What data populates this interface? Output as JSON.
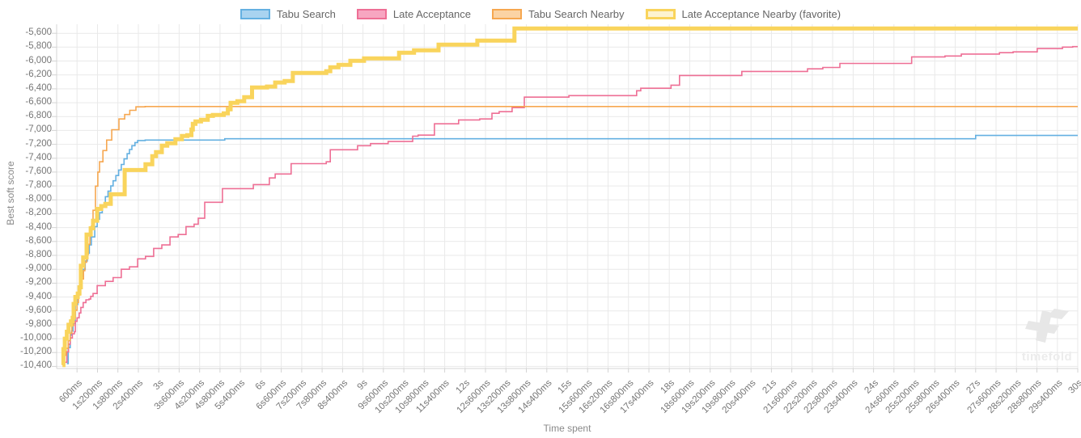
{
  "watermark": {
    "text": "timefold"
  },
  "chart_data": {
    "type": "line",
    "subtype": "step",
    "title": "",
    "xlabel": "Time spent",
    "ylabel": "Best soft score",
    "grid": true,
    "legend_position": "top",
    "xlim_seconds": [
      0,
      30
    ],
    "ylim": [
      -10430,
      -5470
    ],
    "x_tick_interval_seconds": 0.6,
    "x_ticks": [
      "600ms",
      "1s200ms",
      "1s800ms",
      "2s400ms",
      "3s",
      "3s600ms",
      "4s200ms",
      "4s800ms",
      "5s400ms",
      "6s",
      "6s600ms",
      "7s200ms",
      "7s800ms",
      "8s400ms",
      "9s",
      "9s600ms",
      "10s200ms",
      "10s800ms",
      "11s400ms",
      "12s",
      "12s600ms",
      "13s200ms",
      "13s800ms",
      "14s400ms",
      "15s",
      "15s600ms",
      "16s200ms",
      "16s800ms",
      "17s400ms",
      "18s",
      "18s600ms",
      "19s200ms",
      "19s800ms",
      "20s400ms",
      "21s",
      "21s600ms",
      "22s200ms",
      "22s800ms",
      "23s400ms",
      "24s",
      "24s600ms",
      "25s200ms",
      "25s800ms",
      "26s400ms",
      "27s",
      "27s600ms",
      "28s200ms",
      "28s800ms",
      "29s400ms",
      "30s"
    ],
    "y_ticks": [
      "-5,600",
      "-5,800",
      "-6,000",
      "-6,200",
      "-6,400",
      "-6,600",
      "-6,800",
      "-7,000",
      "-7,200",
      "-7,400",
      "-7,600",
      "-7,800",
      "-8,000",
      "-8,200",
      "-8,400",
      "-8,600",
      "-8,800",
      "-9,000",
      "-9,200",
      "-9,400",
      "-9,600",
      "-9,800",
      "-10,000",
      "-10,200",
      "-10,400"
    ],
    "y_tick_start": -5600,
    "y_tick_step": -200,
    "grid_color": "#e9e9e9",
    "axis_color": "#d4d4d4",
    "series": [
      {
        "name": "Tabu Search",
        "line_color": "#64b0e1",
        "legend_fill": "#a9d3f0",
        "line_width": 1.6,
        "final_score": -7072,
        "points": [
          [
            0.3,
            -10360
          ],
          [
            0.34,
            -10130
          ],
          [
            0.4,
            -9950
          ],
          [
            0.44,
            -9890
          ],
          [
            0.48,
            -9780
          ],
          [
            0.55,
            -9510
          ],
          [
            0.62,
            -9370
          ],
          [
            0.67,
            -9235
          ],
          [
            0.73,
            -9100
          ],
          [
            0.78,
            -9000
          ],
          [
            0.84,
            -8880
          ],
          [
            0.9,
            -8770
          ],
          [
            0.96,
            -8650
          ],
          [
            1.02,
            -8535
          ],
          [
            1.12,
            -8385
          ],
          [
            1.19,
            -8280
          ],
          [
            1.26,
            -8185
          ],
          [
            1.34,
            -8070
          ],
          [
            1.43,
            -7955
          ],
          [
            1.51,
            -7875
          ],
          [
            1.59,
            -7800
          ],
          [
            1.66,
            -7725
          ],
          [
            1.74,
            -7650
          ],
          [
            1.82,
            -7570
          ],
          [
            1.9,
            -7490
          ],
          [
            1.98,
            -7410
          ],
          [
            2.07,
            -7335
          ],
          [
            2.14,
            -7275
          ],
          [
            2.21,
            -7220
          ],
          [
            2.3,
            -7175
          ],
          [
            2.38,
            -7145
          ],
          [
            2.6,
            -7138
          ],
          [
            4.94,
            -7120
          ],
          [
            27.0,
            -7072
          ]
        ]
      },
      {
        "name": "Late Acceptance",
        "line_color": "#ee6f95",
        "legend_fill": "#f7a6c1",
        "line_width": 1.6,
        "final_score": -5793,
        "points": [
          [
            0.26,
            -10340
          ],
          [
            0.3,
            -10190
          ],
          [
            0.35,
            -10080
          ],
          [
            0.4,
            -9990
          ],
          [
            0.46,
            -9930
          ],
          [
            0.52,
            -9900
          ],
          [
            0.55,
            -9750
          ],
          [
            0.6,
            -9700
          ],
          [
            0.66,
            -9630
          ],
          [
            0.71,
            -9550
          ],
          [
            0.78,
            -9480
          ],
          [
            0.86,
            -9440
          ],
          [
            0.95,
            -9430
          ],
          [
            1.0,
            -9390
          ],
          [
            1.07,
            -9350
          ],
          [
            1.19,
            -9235
          ],
          [
            1.43,
            -9175
          ],
          [
            1.66,
            -9120
          ],
          [
            1.9,
            -9000
          ],
          [
            2.14,
            -8965
          ],
          [
            2.38,
            -8850
          ],
          [
            2.61,
            -8815
          ],
          [
            2.85,
            -8700
          ],
          [
            3.09,
            -8650
          ],
          [
            3.33,
            -8535
          ],
          [
            3.57,
            -8500
          ],
          [
            3.8,
            -8385
          ],
          [
            4.04,
            -8350
          ],
          [
            4.16,
            -8265
          ],
          [
            4.35,
            -8035
          ],
          [
            4.87,
            -7838
          ],
          [
            5.78,
            -7780
          ],
          [
            6.25,
            -7685
          ],
          [
            6.42,
            -7628
          ],
          [
            6.89,
            -7478
          ],
          [
            7.92,
            -7452
          ],
          [
            8.04,
            -7278
          ],
          [
            8.84,
            -7220
          ],
          [
            9.22,
            -7190
          ],
          [
            9.74,
            -7160
          ],
          [
            10.46,
            -7082
          ],
          [
            10.62,
            -7068
          ],
          [
            11.1,
            -6905
          ],
          [
            11.81,
            -6848
          ],
          [
            12.43,
            -6835
          ],
          [
            12.79,
            -6753
          ],
          [
            13.0,
            -6730
          ],
          [
            13.38,
            -6672
          ],
          [
            13.74,
            -6520
          ],
          [
            15.05,
            -6498
          ],
          [
            17.04,
            -6428
          ],
          [
            17.16,
            -6392
          ],
          [
            18.05,
            -6348
          ],
          [
            18.3,
            -6208
          ],
          [
            20.13,
            -6150
          ],
          [
            22.06,
            -6113
          ],
          [
            22.51,
            -6093
          ],
          [
            23.01,
            -6035
          ],
          [
            25.12,
            -5940
          ],
          [
            26.1,
            -5928
          ],
          [
            26.58,
            -5900
          ],
          [
            27.7,
            -5880
          ],
          [
            28.1,
            -5868
          ],
          [
            28.81,
            -5820
          ],
          [
            29.55,
            -5800
          ],
          [
            29.85,
            -5793
          ]
        ]
      },
      {
        "name": "Tabu Search Nearby",
        "line_color": "#f6a750",
        "legend_fill": "#fbd3a4",
        "line_width": 1.6,
        "final_score": -6655,
        "points": [
          [
            0.16,
            -10345
          ],
          [
            0.22,
            -10240
          ],
          [
            0.28,
            -10140
          ],
          [
            0.34,
            -10030
          ],
          [
            0.4,
            -9920
          ],
          [
            0.45,
            -9810
          ],
          [
            0.5,
            -9700
          ],
          [
            0.55,
            -9590
          ],
          [
            0.6,
            -9480
          ],
          [
            0.64,
            -9370
          ],
          [
            0.69,
            -9255
          ],
          [
            0.74,
            -9140
          ],
          [
            0.79,
            -9020
          ],
          [
            0.83,
            -8900
          ],
          [
            0.88,
            -8790
          ],
          [
            0.93,
            -8640
          ],
          [
            0.98,
            -8490
          ],
          [
            1.02,
            -8380
          ],
          [
            1.07,
            -8150
          ],
          [
            1.14,
            -7802
          ],
          [
            1.21,
            -7600
          ],
          [
            1.26,
            -7452
          ],
          [
            1.36,
            -7290
          ],
          [
            1.47,
            -7138
          ],
          [
            1.62,
            -6990
          ],
          [
            1.83,
            -6835
          ],
          [
            2.0,
            -6770
          ],
          [
            2.15,
            -6710
          ],
          [
            2.33,
            -6660
          ],
          [
            2.6,
            -6655
          ]
        ]
      },
      {
        "name": "Late Acceptance Nearby (favorite)",
        "line_color": "#f9d45c",
        "legend_fill": "#fdf3d0",
        "line_width": 5,
        "final_score": -5530,
        "points": [
          [
            0.17,
            -10380
          ],
          [
            0.2,
            -10150
          ],
          [
            0.24,
            -10000
          ],
          [
            0.3,
            -9900
          ],
          [
            0.35,
            -9800
          ],
          [
            0.42,
            -9750
          ],
          [
            0.47,
            -9700
          ],
          [
            0.5,
            -9500
          ],
          [
            0.55,
            -9400
          ],
          [
            0.62,
            -9350
          ],
          [
            0.67,
            -9260
          ],
          [
            0.71,
            -8950
          ],
          [
            0.78,
            -8830
          ],
          [
            0.88,
            -8500
          ],
          [
            1.0,
            -8410
          ],
          [
            1.07,
            -8300
          ],
          [
            1.19,
            -8130
          ],
          [
            1.31,
            -8090
          ],
          [
            1.43,
            -8058
          ],
          [
            1.59,
            -7920
          ],
          [
            2.0,
            -7570
          ],
          [
            2.61,
            -7488
          ],
          [
            2.81,
            -7370
          ],
          [
            2.92,
            -7312
          ],
          [
            3.09,
            -7220
          ],
          [
            3.25,
            -7184
          ],
          [
            3.49,
            -7126
          ],
          [
            3.68,
            -7080
          ],
          [
            3.84,
            -7068
          ],
          [
            3.96,
            -6986
          ],
          [
            4.0,
            -6905
          ],
          [
            4.08,
            -6870
          ],
          [
            4.24,
            -6847
          ],
          [
            4.44,
            -6790
          ],
          [
            4.59,
            -6777
          ],
          [
            4.91,
            -6753
          ],
          [
            5.03,
            -6695
          ],
          [
            5.11,
            -6602
          ],
          [
            5.31,
            -6578
          ],
          [
            5.51,
            -6520
          ],
          [
            5.74,
            -6380
          ],
          [
            6.18,
            -6368
          ],
          [
            6.42,
            -6310
          ],
          [
            6.7,
            -6287
          ],
          [
            6.94,
            -6171
          ],
          [
            7.92,
            -6147
          ],
          [
            8.04,
            -6089
          ],
          [
            8.28,
            -6054
          ],
          [
            8.63,
            -5996
          ],
          [
            9.03,
            -5961
          ],
          [
            10.06,
            -5880
          ],
          [
            10.5,
            -5845
          ],
          [
            11.22,
            -5763
          ],
          [
            12.36,
            -5705
          ],
          [
            13.45,
            -5530
          ]
        ]
      }
    ]
  }
}
